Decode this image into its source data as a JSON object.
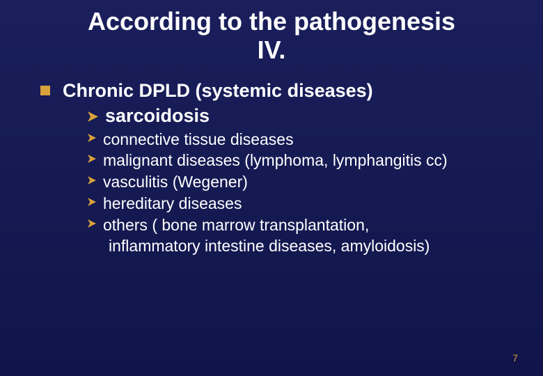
{
  "title_line1": "According to the pathogenesis",
  "title_line2": "IV.",
  "title_fontsize": 36,
  "title_color": "#ffffff",
  "heading": "Chronic DPLD (systemic diseases)",
  "heading_fontsize": 27,
  "heading_color": "#ffffff",
  "square_bullet_color": "#d9a23a",
  "square_bullet_size": 14,
  "arrow_bullet_color": "#d9a23a",
  "sub_big": {
    "text": "sarcoidosis",
    "fontsize": 27,
    "arrow_size": 15
  },
  "subitems": [
    {
      "text": "connective tissue diseases"
    },
    {
      "text": "malignant diseases (lymphoma, lymphangitis cc)"
    },
    {
      "text": "vasculitis (Wegener)"
    },
    {
      "text": "hereditary diseases"
    },
    {
      "text": "others ( bone marrow transplantation,",
      "continuation": "inflammatory intestine diseases, amyloidosis)"
    }
  ],
  "subitem_fontsize": 23,
  "subitem_arrow_size": 12,
  "subitem_color": "#ffffff",
  "background_gradient": [
    "#1a1f5c",
    "#151a52",
    "#10144a"
  ],
  "page_number": "7",
  "page_number_color": "#d9a23a",
  "page_number_fontsize": 14
}
